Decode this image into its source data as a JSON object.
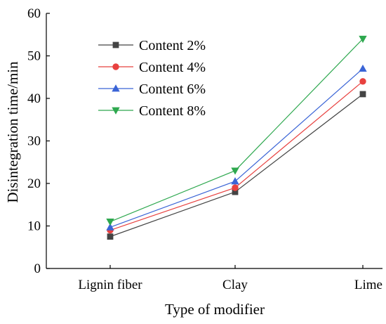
{
  "chart_data": {
    "type": "line",
    "title": "",
    "xlabel": "Type of modifier",
    "ylabel": "Disintegration time/min",
    "categories": [
      "Lignin fiber",
      "Clay",
      "Lime"
    ],
    "ylim": [
      0,
      60
    ],
    "yticks": [
      0,
      10,
      20,
      30,
      40,
      50,
      60
    ],
    "grid": false,
    "legend_position": "top-left",
    "series": [
      {
        "name": "Content 2%",
        "values": [
          7.5,
          18,
          41
        ],
        "color": "#444444",
        "marker": "square"
      },
      {
        "name": "Content 4%",
        "values": [
          9,
          19,
          44
        ],
        "color": "#e8413f",
        "marker": "circle"
      },
      {
        "name": "Content 6%",
        "values": [
          9.7,
          20.5,
          47
        ],
        "color": "#3a64d6",
        "marker": "triangle-up"
      },
      {
        "name": "Content 8%",
        "values": [
          11,
          23,
          54
        ],
        "color": "#2ea84f",
        "marker": "triangle-down"
      }
    ]
  }
}
